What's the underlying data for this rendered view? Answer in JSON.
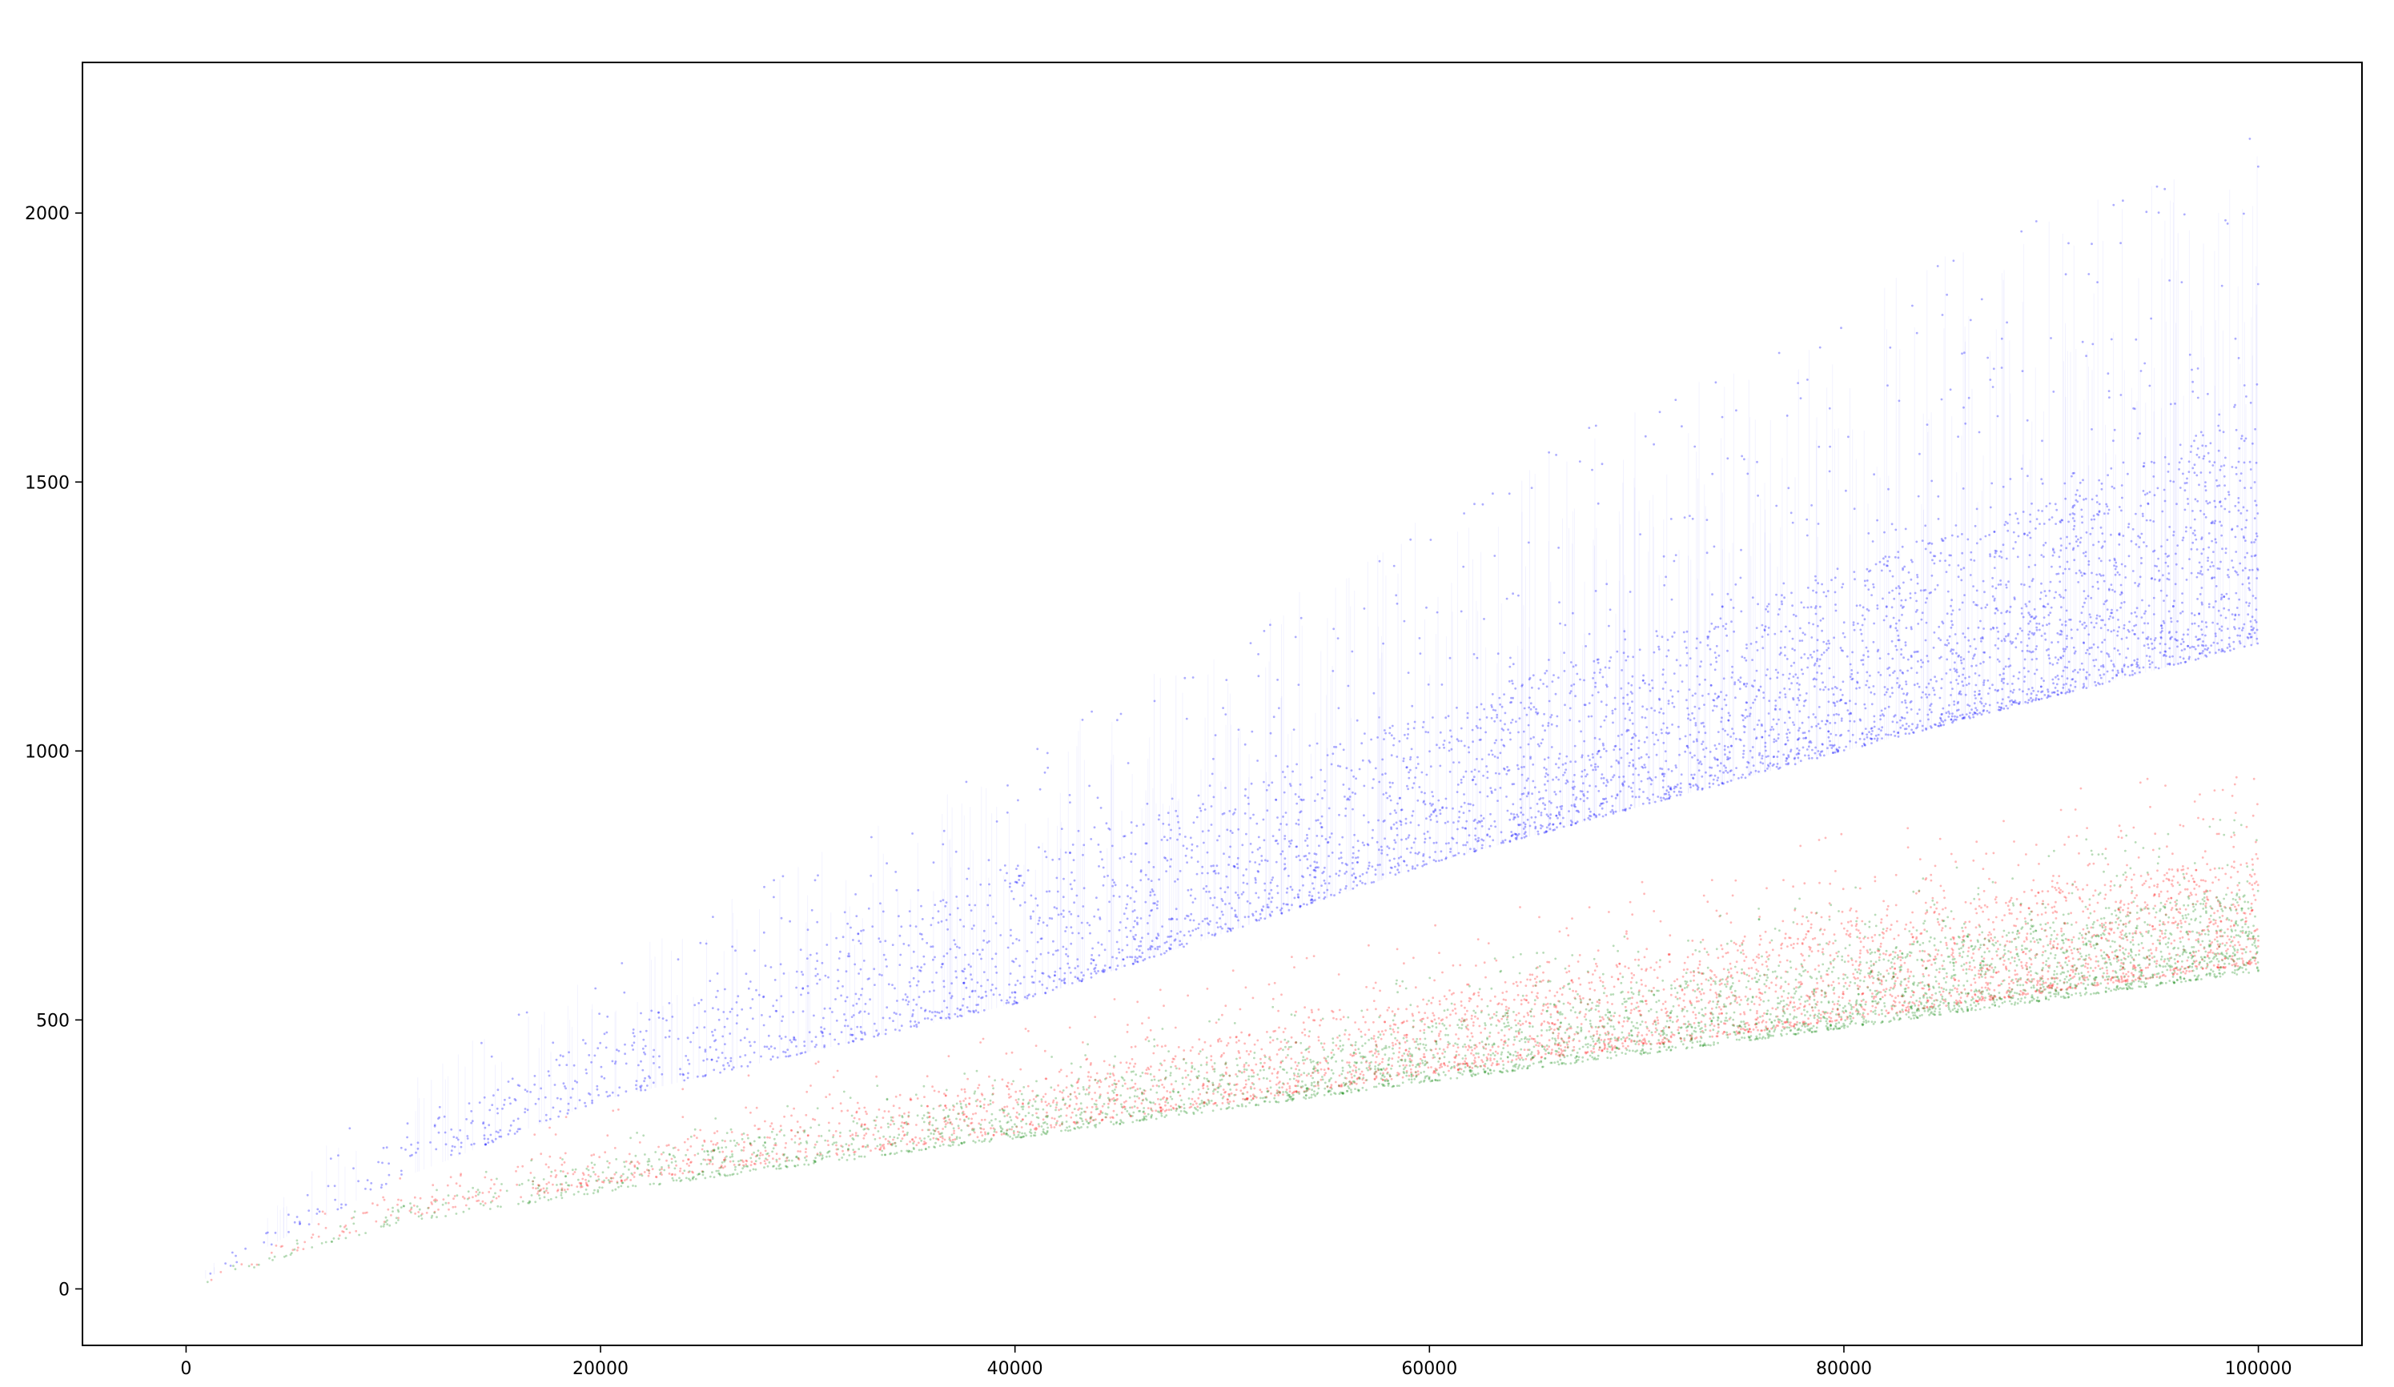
{
  "chart_data": {
    "type": "scatter",
    "title": "",
    "xlabel": "",
    "ylabel": "",
    "xlim": [
      -12500,
      262500
    ],
    "ylim": [
      -105,
      2280
    ],
    "x_data_range": [
      0,
      250000
    ],
    "x_ticks": [
      {
        "value": 0,
        "label": "0"
      },
      {
        "value": 50000,
        "label": "20000"
      },
      {
        "value": 100000,
        "label": "40000"
      },
      {
        "value": 150000,
        "label": "60000"
      },
      {
        "value": 200000,
        "label": "80000"
      },
      {
        "value": 250000,
        "label": "100000"
      }
    ],
    "y_ticks": [
      {
        "value": 0,
        "label": "0"
      },
      {
        "value": 500,
        "label": "500"
      },
      {
        "value": 1000,
        "label": "1000"
      },
      {
        "value": 1500,
        "label": "1500"
      },
      {
        "value": 2000,
        "label": "2000"
      }
    ],
    "grid": false,
    "legend": "none",
    "series": [
      {
        "color": "#0000ff",
        "marker": "dot",
        "band_lower": [
          [
            0,
            0
          ],
          [
            25000,
            200
          ],
          [
            50000,
            350
          ],
          [
            100000,
            530
          ],
          [
            150000,
            790
          ],
          [
            200000,
            1000
          ],
          [
            250000,
            1200
          ]
        ],
        "band_core_upper": [
          [
            0,
            0
          ],
          [
            25000,
            280
          ],
          [
            50000,
            470
          ],
          [
            100000,
            780
          ],
          [
            150000,
            1060
          ],
          [
            200000,
            1330
          ],
          [
            250000,
            1600
          ]
        ],
        "band_outlier_max": [
          [
            0,
            0
          ],
          [
            25000,
            400
          ],
          [
            50000,
            600
          ],
          [
            100000,
            1000
          ],
          [
            150000,
            1450
          ],
          [
            200000,
            1850
          ],
          [
            250000,
            2150
          ]
        ]
      },
      {
        "color": "#ff0000",
        "marker": "dot",
        "band_lower": [
          [
            0,
            0
          ],
          [
            25000,
            130
          ],
          [
            50000,
            195
          ],
          [
            100000,
            290
          ],
          [
            150000,
            400
          ],
          [
            200000,
            500
          ],
          [
            250000,
            605
          ]
        ],
        "band_core_upper": [
          [
            0,
            0
          ],
          [
            25000,
            175
          ],
          [
            50000,
            260
          ],
          [
            100000,
            390
          ],
          [
            150000,
            540
          ],
          [
            200000,
            680
          ],
          [
            250000,
            800
          ]
        ],
        "band_outlier_max": [
          [
            0,
            0
          ],
          [
            25000,
            230
          ],
          [
            50000,
            340
          ],
          [
            100000,
            510
          ],
          [
            150000,
            680
          ],
          [
            200000,
            850
          ],
          [
            250000,
            1000
          ]
        ]
      },
      {
        "color": "#008000",
        "marker": "dot",
        "band_lower": [
          [
            0,
            0
          ],
          [
            25000,
            120
          ],
          [
            50000,
            180
          ],
          [
            100000,
            280
          ],
          [
            150000,
            385
          ],
          [
            200000,
            485
          ],
          [
            250000,
            590
          ]
        ],
        "band_core_upper": [
          [
            0,
            0
          ],
          [
            25000,
            155
          ],
          [
            50000,
            235
          ],
          [
            100000,
            360
          ],
          [
            150000,
            490
          ],
          [
            200000,
            620
          ],
          [
            250000,
            740
          ]
        ],
        "band_outlier_max": [
          [
            0,
            0
          ],
          [
            25000,
            190
          ],
          [
            50000,
            290
          ],
          [
            100000,
            440
          ],
          [
            150000,
            590
          ],
          [
            200000,
            750
          ],
          [
            250000,
            900
          ]
        ]
      }
    ]
  }
}
